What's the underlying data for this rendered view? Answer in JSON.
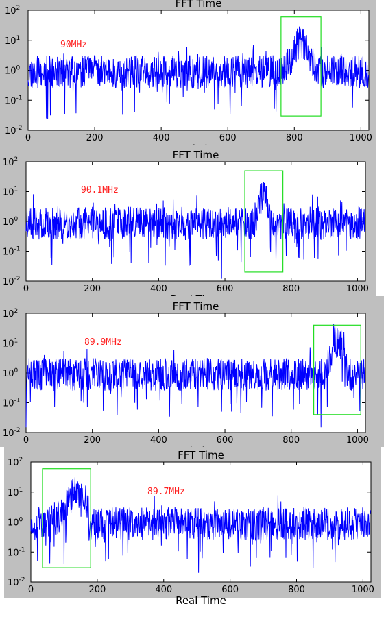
{
  "chart_data": [
    {
      "type": "line",
      "title": "FFT Time",
      "xlabel": "Real Time",
      "annotation": "90MHz",
      "yscale": "log",
      "xlim": [
        0,
        1024
      ],
      "ylim": [
        0.01,
        100
      ],
      "xticks": [
        "0",
        "200",
        "400",
        "600",
        "800",
        "1000"
      ],
      "yticks": [
        {
          "base": "10",
          "exp": "-2"
        },
        {
          "base": "10",
          "exp": "-1"
        },
        {
          "base": "10",
          "exp": "0"
        },
        {
          "base": "10",
          "exp": "1"
        },
        {
          "base": "10",
          "exp": "2"
        }
      ],
      "line_color": "#0000ff",
      "highlight_color": "#22dd22",
      "highlight_x": [
        760,
        880
      ],
      "highlight_y": [
        0.03,
        60
      ],
      "peak": {
        "x_range": [
          775,
          865
        ],
        "center": 820,
        "value": 12
      },
      "dips": [
        [
          55,
          0.025
        ],
        [
          110,
          0.035
        ],
        [
          320,
          0.04
        ],
        [
          560,
          0.05
        ]
      ],
      "seed": 11
    },
    {
      "type": "line",
      "title": "FFT Time",
      "xlabel": "Real Time",
      "annotation": "90.1MHz",
      "yscale": "log",
      "xlim": [
        0,
        1024
      ],
      "ylim": [
        0.01,
        100
      ],
      "xticks": [
        "0",
        "200",
        "400",
        "600",
        "800",
        "1000"
      ],
      "yticks": [
        {
          "base": "10",
          "exp": "-2"
        },
        {
          "base": "10",
          "exp": "-1"
        },
        {
          "base": "10",
          "exp": "0"
        },
        {
          "base": "10",
          "exp": "1"
        },
        {
          "base": "10",
          "exp": "2"
        }
      ],
      "line_color": "#0000ff",
      "highlight_color": "#22dd22",
      "highlight_x": [
        660,
        775
      ],
      "highlight_y": [
        0.02,
        50
      ],
      "peak": {
        "x_range": [
          690,
          740
        ],
        "center": 715,
        "value": 10
      },
      "dips": [
        [
          370,
          0.04
        ],
        [
          590,
          0.012
        ],
        [
          580,
          0.05
        ],
        [
          870,
          0.06
        ]
      ],
      "seed": 23
    },
    {
      "type": "line",
      "title": "FFT Time",
      "xlabel": "Real Time",
      "annotation": "89.9MHz",
      "yscale": "log",
      "xlim": [
        0,
        1024
      ],
      "ylim": [
        0.01,
        100
      ],
      "xticks": [
        "0",
        "200",
        "400",
        "600",
        "800",
        "1000"
      ],
      "yticks": [
        {
          "base": "10",
          "exp": "-2"
        },
        {
          "base": "10",
          "exp": "-1"
        },
        {
          "base": "10",
          "exp": "0"
        },
        {
          "base": "10",
          "exp": "1"
        },
        {
          "base": "10",
          "exp": "2"
        }
      ],
      "line_color": "#0000ff",
      "highlight_color": "#22dd22",
      "highlight_x": [
        868,
        1010
      ],
      "highlight_y": [
        0.04,
        40
      ],
      "peak": {
        "x_range": [
          905,
          975
        ],
        "center": 940,
        "value": 15
      },
      "dips": [
        [
          0,
          0.015
        ],
        [
          590,
          0.05
        ],
        [
          880,
          0.04
        ],
        [
          890,
          0.015
        ]
      ],
      "seed": 37
    },
    {
      "type": "line",
      "title": "FFT Time",
      "xlabel": "Real Time",
      "annotation": "89.7MHz",
      "yscale": "log",
      "xlim": [
        0,
        1024
      ],
      "ylim": [
        0.01,
        100
      ],
      "xticks": [
        "0",
        "200",
        "400",
        "600",
        "800",
        "1000"
      ],
      "yticks": [
        {
          "base": "10",
          "exp": "-2"
        },
        {
          "base": "10",
          "exp": "-1"
        },
        {
          "base": "10",
          "exp": "0"
        },
        {
          "base": "10",
          "exp": "1"
        },
        {
          "base": "10",
          "exp": "2"
        }
      ],
      "line_color": "#0000ff",
      "highlight_color": "#22dd22",
      "highlight_x": [
        35,
        180
      ],
      "highlight_y": [
        0.03,
        60
      ],
      "peak": {
        "x_range": [
          50,
          175
        ],
        "center": 140,
        "value": 13
      },
      "dips": [
        [
          20,
          0.05
        ],
        [
          100,
          0.04
        ],
        [
          505,
          0.02
        ],
        [
          850,
          0.03
        ]
      ],
      "seed": 53
    }
  ]
}
